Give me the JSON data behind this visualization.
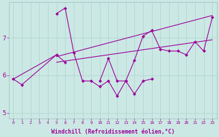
{
  "xlabel": "Windchill (Refroidissement éolien,°C)",
  "bg_color": "#cce8e4",
  "line_color": "#990099",
  "xlim": [
    -0.5,
    23.5
  ],
  "ylim": [
    4.85,
    7.95
  ],
  "yticks": [
    5,
    6,
    7
  ],
  "xticks": [
    0,
    1,
    2,
    3,
    4,
    5,
    6,
    7,
    8,
    9,
    10,
    11,
    12,
    13,
    14,
    15,
    16,
    17,
    18,
    19,
    20,
    21,
    22,
    23
  ],
  "series": [
    {
      "x": [
        0,
        1,
        5,
        6
      ],
      "y": [
        5.9,
        5.75,
        6.55,
        6.35
      ],
      "has_marker": true,
      "connect": false
    },
    {
      "x": [
        5,
        6,
        7,
        8,
        9,
        10,
        11,
        12,
        13,
        14,
        15,
        16
      ],
      "y": [
        7.65,
        7.8,
        6.6,
        5.85,
        5.85,
        5.7,
        5.85,
        5.45,
        5.85,
        5.5,
        5.85,
        5.9
      ],
      "has_marker": true,
      "connect": true
    },
    {
      "x": [
        10,
        11,
        12,
        13,
        14,
        15,
        16,
        17,
        18,
        19,
        20,
        21,
        22,
        23
      ],
      "y": [
        5.85,
        6.45,
        5.85,
        5.85,
        6.4,
        7.05,
        7.2,
        6.7,
        6.65,
        6.65,
        6.55,
        6.9,
        6.65,
        7.55
      ],
      "has_marker": true,
      "connect": true
    },
    {
      "x": [
        5,
        23
      ],
      "y": [
        6.5,
        7.6
      ],
      "has_marker": false,
      "connect": true
    },
    {
      "x": [
        5,
        23
      ],
      "y": [
        6.35,
        6.95
      ],
      "has_marker": false,
      "connect": true
    },
    {
      "x": [
        0,
        5
      ],
      "y": [
        5.9,
        6.55
      ],
      "has_marker": false,
      "connect": true
    }
  ]
}
